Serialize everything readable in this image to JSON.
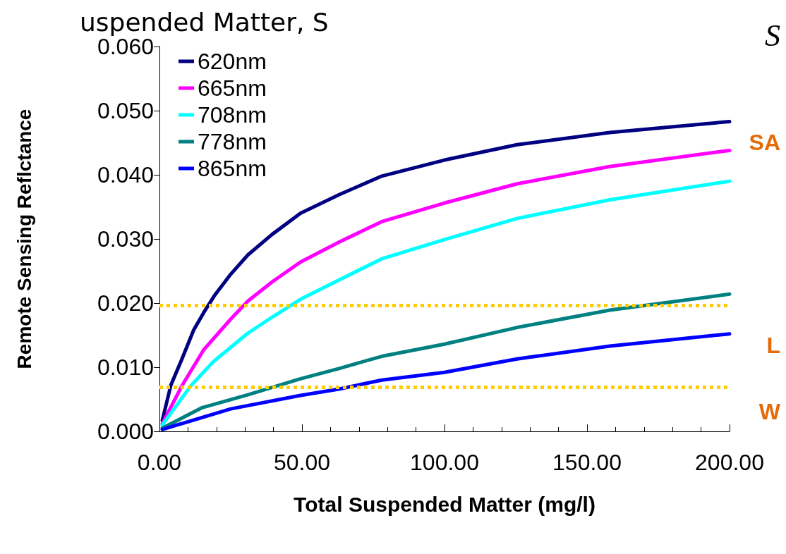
{
  "chart_data": {
    "type": "line",
    "title": "uspended Matter, S",
    "xlabel": "Total Suspended Matter (mg/l)",
    "ylabel": "Remote Sensing Reflctance",
    "xlim": [
      0,
      200
    ],
    "xticks": [
      {
        "value": 0,
        "label": "0.00"
      },
      {
        "value": 50,
        "label": "50.00"
      },
      {
        "value": 100,
        "label": "100.00"
      },
      {
        "value": 150,
        "label": "150.00"
      },
      {
        "value": 200,
        "label": "200.00"
      }
    ],
    "ylim": [
      0,
      0.06
    ],
    "yticks": [
      {
        "value": 0,
        "label": "0.000"
      },
      {
        "value": 0.01,
        "label": "0.010"
      },
      {
        "value": 0.02,
        "label": "0.020"
      },
      {
        "value": 0.03,
        "label": "0.030"
      },
      {
        "value": 0.04,
        "label": "0.040"
      },
      {
        "value": 0.05,
        "label": "0.050"
      },
      {
        "value": 0.06,
        "label": "0.060"
      }
    ],
    "grid": false,
    "legend": "top left",
    "marker": "none",
    "line_style": "solid",
    "series": [
      {
        "name": "620nm",
        "color": "#000080",
        "x": [
          1,
          4,
          8,
          12,
          15.5,
          19.5,
          25,
          31,
          39.5,
          49.5,
          63,
          78,
          100,
          125.5,
          158,
          200
        ],
        "values": [
          0.0017,
          0.0072,
          0.0114,
          0.0158,
          0.0185,
          0.0213,
          0.0245,
          0.0275,
          0.0307,
          0.034,
          0.0369,
          0.0398,
          0.0423,
          0.0447,
          0.0466,
          0.0483
        ]
      },
      {
        "name": "665nm",
        "color": "#ff00ff",
        "x": [
          1,
          8,
          15.5,
          25,
          31,
          39.5,
          49.5,
          63,
          78,
          100,
          125.5,
          158,
          200
        ],
        "values": [
          0.0012,
          0.0072,
          0.0127,
          0.0175,
          0.0203,
          0.0233,
          0.0264,
          0.0295,
          0.0327,
          0.0356,
          0.0386,
          0.0413,
          0.0438
        ]
      },
      {
        "name": "708nm",
        "color": "#00ffff",
        "x": [
          1,
          11,
          19,
          31,
          39.5,
          49.5,
          63,
          78,
          100,
          125.5,
          158,
          200
        ],
        "values": [
          0.001,
          0.0071,
          0.0109,
          0.0153,
          0.0178,
          0.0206,
          0.0236,
          0.0269,
          0.0299,
          0.0332,
          0.0361,
          0.039
        ]
      },
      {
        "name": "778nm",
        "color": "#008080",
        "x": [
          1,
          15,
          31,
          49.5,
          63,
          78,
          100,
          125.5,
          158,
          200
        ],
        "values": [
          0.0005,
          0.0037,
          0.0057,
          0.0082,
          0.0098,
          0.0117,
          0.0136,
          0.0162,
          0.0189,
          0.0214
        ]
      },
      {
        "name": "865nm",
        "color": "#0000ff",
        "x": [
          1,
          25,
          49.5,
          63,
          78,
          100,
          125.5,
          158,
          200
        ],
        "values": [
          0.0003,
          0.0035,
          0.0056,
          0.0066,
          0.008,
          0.0092,
          0.0113,
          0.0133,
          0.0152
        ]
      }
    ],
    "ref_lines": [
      {
        "axis": "y",
        "value": 0.0196,
        "color": "#ffcc00",
        "line_style": "dotted"
      },
      {
        "axis": "y",
        "value": 0.0069,
        "color": "#ffcc00",
        "line_style": "dotted"
      }
    ],
    "annotations": [
      "S",
      "SA",
      "L",
      "W"
    ]
  }
}
